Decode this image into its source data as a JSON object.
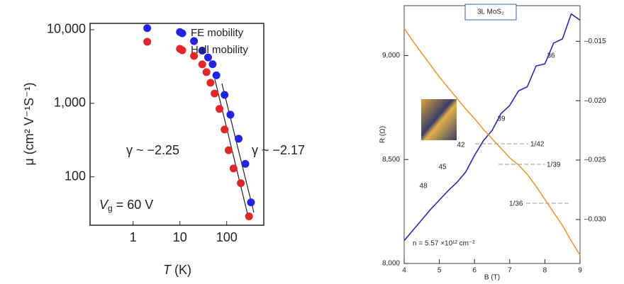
{
  "chart_data": [
    {
      "type": "scatter",
      "log_x": true,
      "log_y": true,
      "xlabel_symbol": "T",
      "xlabel_unit": "(K)",
      "ylabel": "μ (cm² V⁻¹S⁻¹)",
      "xlim": [
        0.12,
        620
      ],
      "ylim": [
        22,
        12200
      ],
      "xticks": [
        1,
        10,
        100
      ],
      "yticks": [
        {
          "value": 10000,
          "label": "10,000"
        },
        {
          "value": 1000,
          "label": "1,000"
        },
        100
      ],
      "legend": "upper right",
      "series": [
        {
          "name": "FE mobility",
          "color": "#2424e0",
          "x": [
            2,
            10,
            20,
            30,
            40,
            50,
            60,
            90,
            120,
            180,
            250,
            330
          ],
          "values": [
            10500,
            9300,
            7000,
            5200,
            4200,
            3400,
            2400,
            1300,
            700,
            330,
            150,
            45
          ]
        },
        {
          "name": "Hall mobility",
          "color": "#e0282a",
          "x": [
            2,
            10,
            20,
            30,
            37,
            45,
            55,
            70,
            90,
            110,
            140,
            200,
            300
          ],
          "values": [
            6860,
            5500,
            4400,
            3380,
            2650,
            1900,
            1360,
            840,
            440,
            230,
            130,
            82,
            29
          ]
        }
      ],
      "annotations": [
        {
          "text": "γ ~ −2.25",
          "color": "#e0282a"
        },
        {
          "text": "γ ~ −2.17",
          "color": "#2424e0"
        }
      ],
      "gate_label": {
        "symbol": "V",
        "subscript": "g",
        "text": "= 60 V"
      }
    },
    {
      "type": "line",
      "title": "3L MoS₂",
      "xlabel": "B (T)",
      "ylabel": "R (Ω)",
      "xlim": [
        4,
        9
      ],
      "ylim": [
        8000,
        9240
      ],
      "y2lim": [
        -0.0337,
        -0.012
      ],
      "xticks": [
        4,
        5,
        6,
        7,
        8,
        9
      ],
      "yticks": [
        {
          "value": 8000,
          "label": "8,000"
        },
        {
          "value": 8500,
          "label": "8,500"
        },
        {
          "value": 9000,
          "label": "9,000"
        }
      ],
      "y2ticks": [
        {
          "value": -0.03,
          "label": "–0.030"
        },
        {
          "value": -0.025,
          "label": "–0.025"
        },
        {
          "value": -0.02,
          "label": "–0.020"
        },
        {
          "value": -0.015,
          "label": "–0.015"
        }
      ],
      "x": [
        4.0,
        4.25,
        4.5,
        4.75,
        5.0,
        5.25,
        5.5,
        5.75,
        6.0,
        6.25,
        6.5,
        6.75,
        7.0,
        7.25,
        7.5,
        7.75,
        8.0,
        8.25,
        8.5,
        8.75,
        9.0
      ],
      "series": [
        {
          "color": "#2a2ab0",
          "values": [
            8110,
            8160,
            8210,
            8260,
            8305,
            8350,
            8390,
            8440,
            8520,
            8590,
            8640,
            8720,
            8760,
            8830,
            8850,
            8950,
            8960,
            9060,
            9080,
            9200,
            9170
          ]
        },
        {
          "color": "#e89a3c",
          "axis": "y2",
          "values": [
            -0.0139,
            -0.015,
            -0.016,
            -0.017,
            -0.018,
            -0.0189,
            -0.0198,
            -0.0207,
            -0.0215,
            -0.0224,
            -0.0232,
            -0.024,
            -0.0248,
            -0.0254,
            -0.0262,
            -0.0272,
            -0.0283,
            -0.0294,
            -0.0305,
            -0.0318,
            -0.033
          ]
        }
      ],
      "annotations": [
        "48",
        "45",
        "42",
        "39",
        "36",
        "1/42",
        "1/39",
        "1/36",
        "n = 5.57 ×10¹² cm⁻²"
      ]
    }
  ]
}
